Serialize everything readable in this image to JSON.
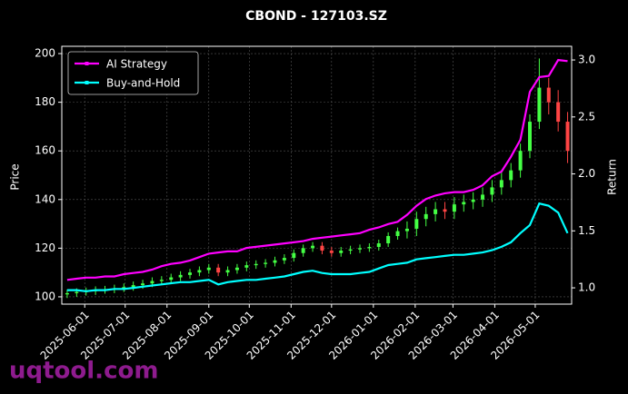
{
  "chart_data": {
    "type": "candlestick",
    "title": "CBOND - 127103.SZ",
    "ylabel": "Price",
    "y2label": "Return",
    "watermark": "uqtool.com",
    "x": [
      "2025-05-19",
      "2025-05-26",
      "2025-06-02",
      "2025-06-09",
      "2025-06-16",
      "2025-06-23",
      "2025-06-30",
      "2025-07-07",
      "2025-07-14",
      "2025-07-21",
      "2025-07-28",
      "2025-08-04",
      "2025-08-11",
      "2025-08-18",
      "2025-08-25",
      "2025-09-01",
      "2025-09-08",
      "2025-09-15",
      "2025-09-22",
      "2025-09-29",
      "2025-10-06",
      "2025-10-13",
      "2025-10-20",
      "2025-10-27",
      "2025-11-03",
      "2025-11-10",
      "2025-11-17",
      "2025-11-24",
      "2025-12-01",
      "2025-12-08",
      "2025-12-15",
      "2025-12-22",
      "2025-12-29",
      "2026-01-05",
      "2026-01-12",
      "2026-01-19",
      "2026-01-26",
      "2026-02-02",
      "2026-02-09",
      "2026-02-16",
      "2026-02-23",
      "2026-03-02",
      "2026-03-09",
      "2026-03-16",
      "2026-03-23",
      "2026-03-30",
      "2026-04-06",
      "2026-04-13",
      "2026-04-20",
      "2026-04-27",
      "2026-05-04",
      "2026-05-11",
      "2026-05-18",
      "2026-05-25"
    ],
    "open": [
      101,
      101.5,
      102,
      102.3,
      102.8,
      103,
      103.5,
      104,
      104.8,
      105.5,
      106.5,
      107,
      108,
      109,
      110,
      111,
      112,
      110,
      111,
      112,
      113,
      113.5,
      114,
      115,
      116,
      118,
      120,
      121,
      119,
      118,
      119,
      119.5,
      120,
      120.5,
      122,
      125,
      127,
      128,
      132,
      134,
      136,
      135,
      138,
      139,
      140,
      142,
      145,
      148,
      152,
      160,
      172,
      186,
      180,
      172
    ],
    "high": [
      103,
      103.5,
      103.8,
      104.3,
      104.5,
      105,
      105.5,
      106.3,
      107,
      108,
      108.5,
      109.5,
      110.5,
      111.5,
      112.5,
      113.5,
      113.5,
      112.5,
      113.5,
      114.5,
      115,
      115.5,
      116.5,
      117.5,
      119.5,
      121.5,
      122.5,
      122.5,
      120.5,
      120.5,
      121,
      121.5,
      122,
      123.5,
      126.5,
      128.5,
      131,
      135,
      137,
      139,
      139,
      141,
      142,
      143,
      145,
      148,
      151,
      155,
      163,
      175,
      198,
      190,
      185,
      176
    ],
    "low": [
      99.5,
      100,
      100.5,
      100.8,
      101.3,
      101.5,
      102,
      102.5,
      103.3,
      104,
      105,
      105.5,
      106.5,
      107.5,
      108.5,
      109.5,
      108.5,
      108.5,
      109.5,
      110.5,
      111.5,
      112,
      112.5,
      113.5,
      114.5,
      116.5,
      118.5,
      117.5,
      116.5,
      116.5,
      117.5,
      118,
      118.5,
      119,
      120.5,
      123.5,
      124,
      125,
      129,
      131,
      132,
      132,
      135,
      136,
      137,
      139,
      142,
      145,
      149,
      157,
      169,
      175,
      168,
      155
    ],
    "close": [
      101.5,
      102,
      102.3,
      102.8,
      103,
      103.5,
      104,
      104.8,
      105.5,
      106.5,
      107,
      108,
      109,
      110,
      111,
      112,
      110,
      111,
      112,
      113,
      113.5,
      114,
      115,
      116,
      118,
      120,
      121,
      119,
      118,
      119,
      119.5,
      120,
      120.5,
      122,
      125,
      127,
      128,
      132,
      134,
      136,
      135,
      138,
      139,
      140,
      142,
      145,
      148,
      152,
      160,
      172,
      186,
      180,
      172,
      160
    ],
    "up_color": "#44ff44",
    "down_color": "#ff4444",
    "series": [
      {
        "name": "AI Strategy",
        "color": "#ff00ff",
        "axis": "y2",
        "values": [
          1.07,
          1.08,
          1.09,
          1.09,
          1.1,
          1.1,
          1.12,
          1.13,
          1.14,
          1.16,
          1.19,
          1.21,
          1.22,
          1.24,
          1.27,
          1.3,
          1.31,
          1.32,
          1.32,
          1.35,
          1.36,
          1.37,
          1.38,
          1.39,
          1.4,
          1.41,
          1.43,
          1.44,
          1.45,
          1.46,
          1.47,
          1.48,
          1.51,
          1.53,
          1.56,
          1.58,
          1.64,
          1.72,
          1.78,
          1.81,
          1.83,
          1.84,
          1.84,
          1.86,
          1.9,
          1.98,
          2.02,
          2.15,
          2.3,
          2.72,
          2.85,
          2.86,
          3.0,
          2.99
        ]
      },
      {
        "name": "Buy-and-Hold",
        "color": "#00ffff",
        "axis": "y2",
        "values": [
          0.98,
          0.98,
          0.97,
          0.98,
          0.98,
          0.99,
          0.99,
          1.0,
          1.01,
          1.02,
          1.03,
          1.04,
          1.05,
          1.05,
          1.06,
          1.07,
          1.03,
          1.05,
          1.06,
          1.07,
          1.07,
          1.08,
          1.09,
          1.1,
          1.12,
          1.14,
          1.15,
          1.13,
          1.12,
          1.12,
          1.12,
          1.13,
          1.14,
          1.17,
          1.2,
          1.21,
          1.22,
          1.25,
          1.26,
          1.27,
          1.28,
          1.29,
          1.29,
          1.3,
          1.31,
          1.33,
          1.36,
          1.4,
          1.48,
          1.55,
          1.74,
          1.72,
          1.66,
          1.48
        ]
      }
    ],
    "xlim": [
      "2025-05-15",
      "2026-05-28"
    ],
    "xticks": [
      "2025-06-01",
      "2025-07-01",
      "2025-08-01",
      "2025-09-01",
      "2025-10-01",
      "2025-11-01",
      "2025-12-01",
      "2026-01-01",
      "2026-02-01",
      "2026-03-01",
      "2026-04-01",
      "2026-05-01"
    ],
    "ylim": [
      97,
      203
    ],
    "yticks": [
      100,
      120,
      140,
      160,
      180,
      200
    ],
    "y2lim": [
      0.857,
      3.12
    ],
    "y2ticks": [
      {
        "value": 1,
        "label": "1.0"
      },
      {
        "value": 1.5,
        "label": "1.5"
      },
      {
        "value": 2,
        "label": "2.0"
      },
      {
        "value": 2.5,
        "label": "2.5"
      },
      {
        "value": 3,
        "label": "3.0"
      }
    ],
    "grid": true,
    "legend": "upper left"
  }
}
